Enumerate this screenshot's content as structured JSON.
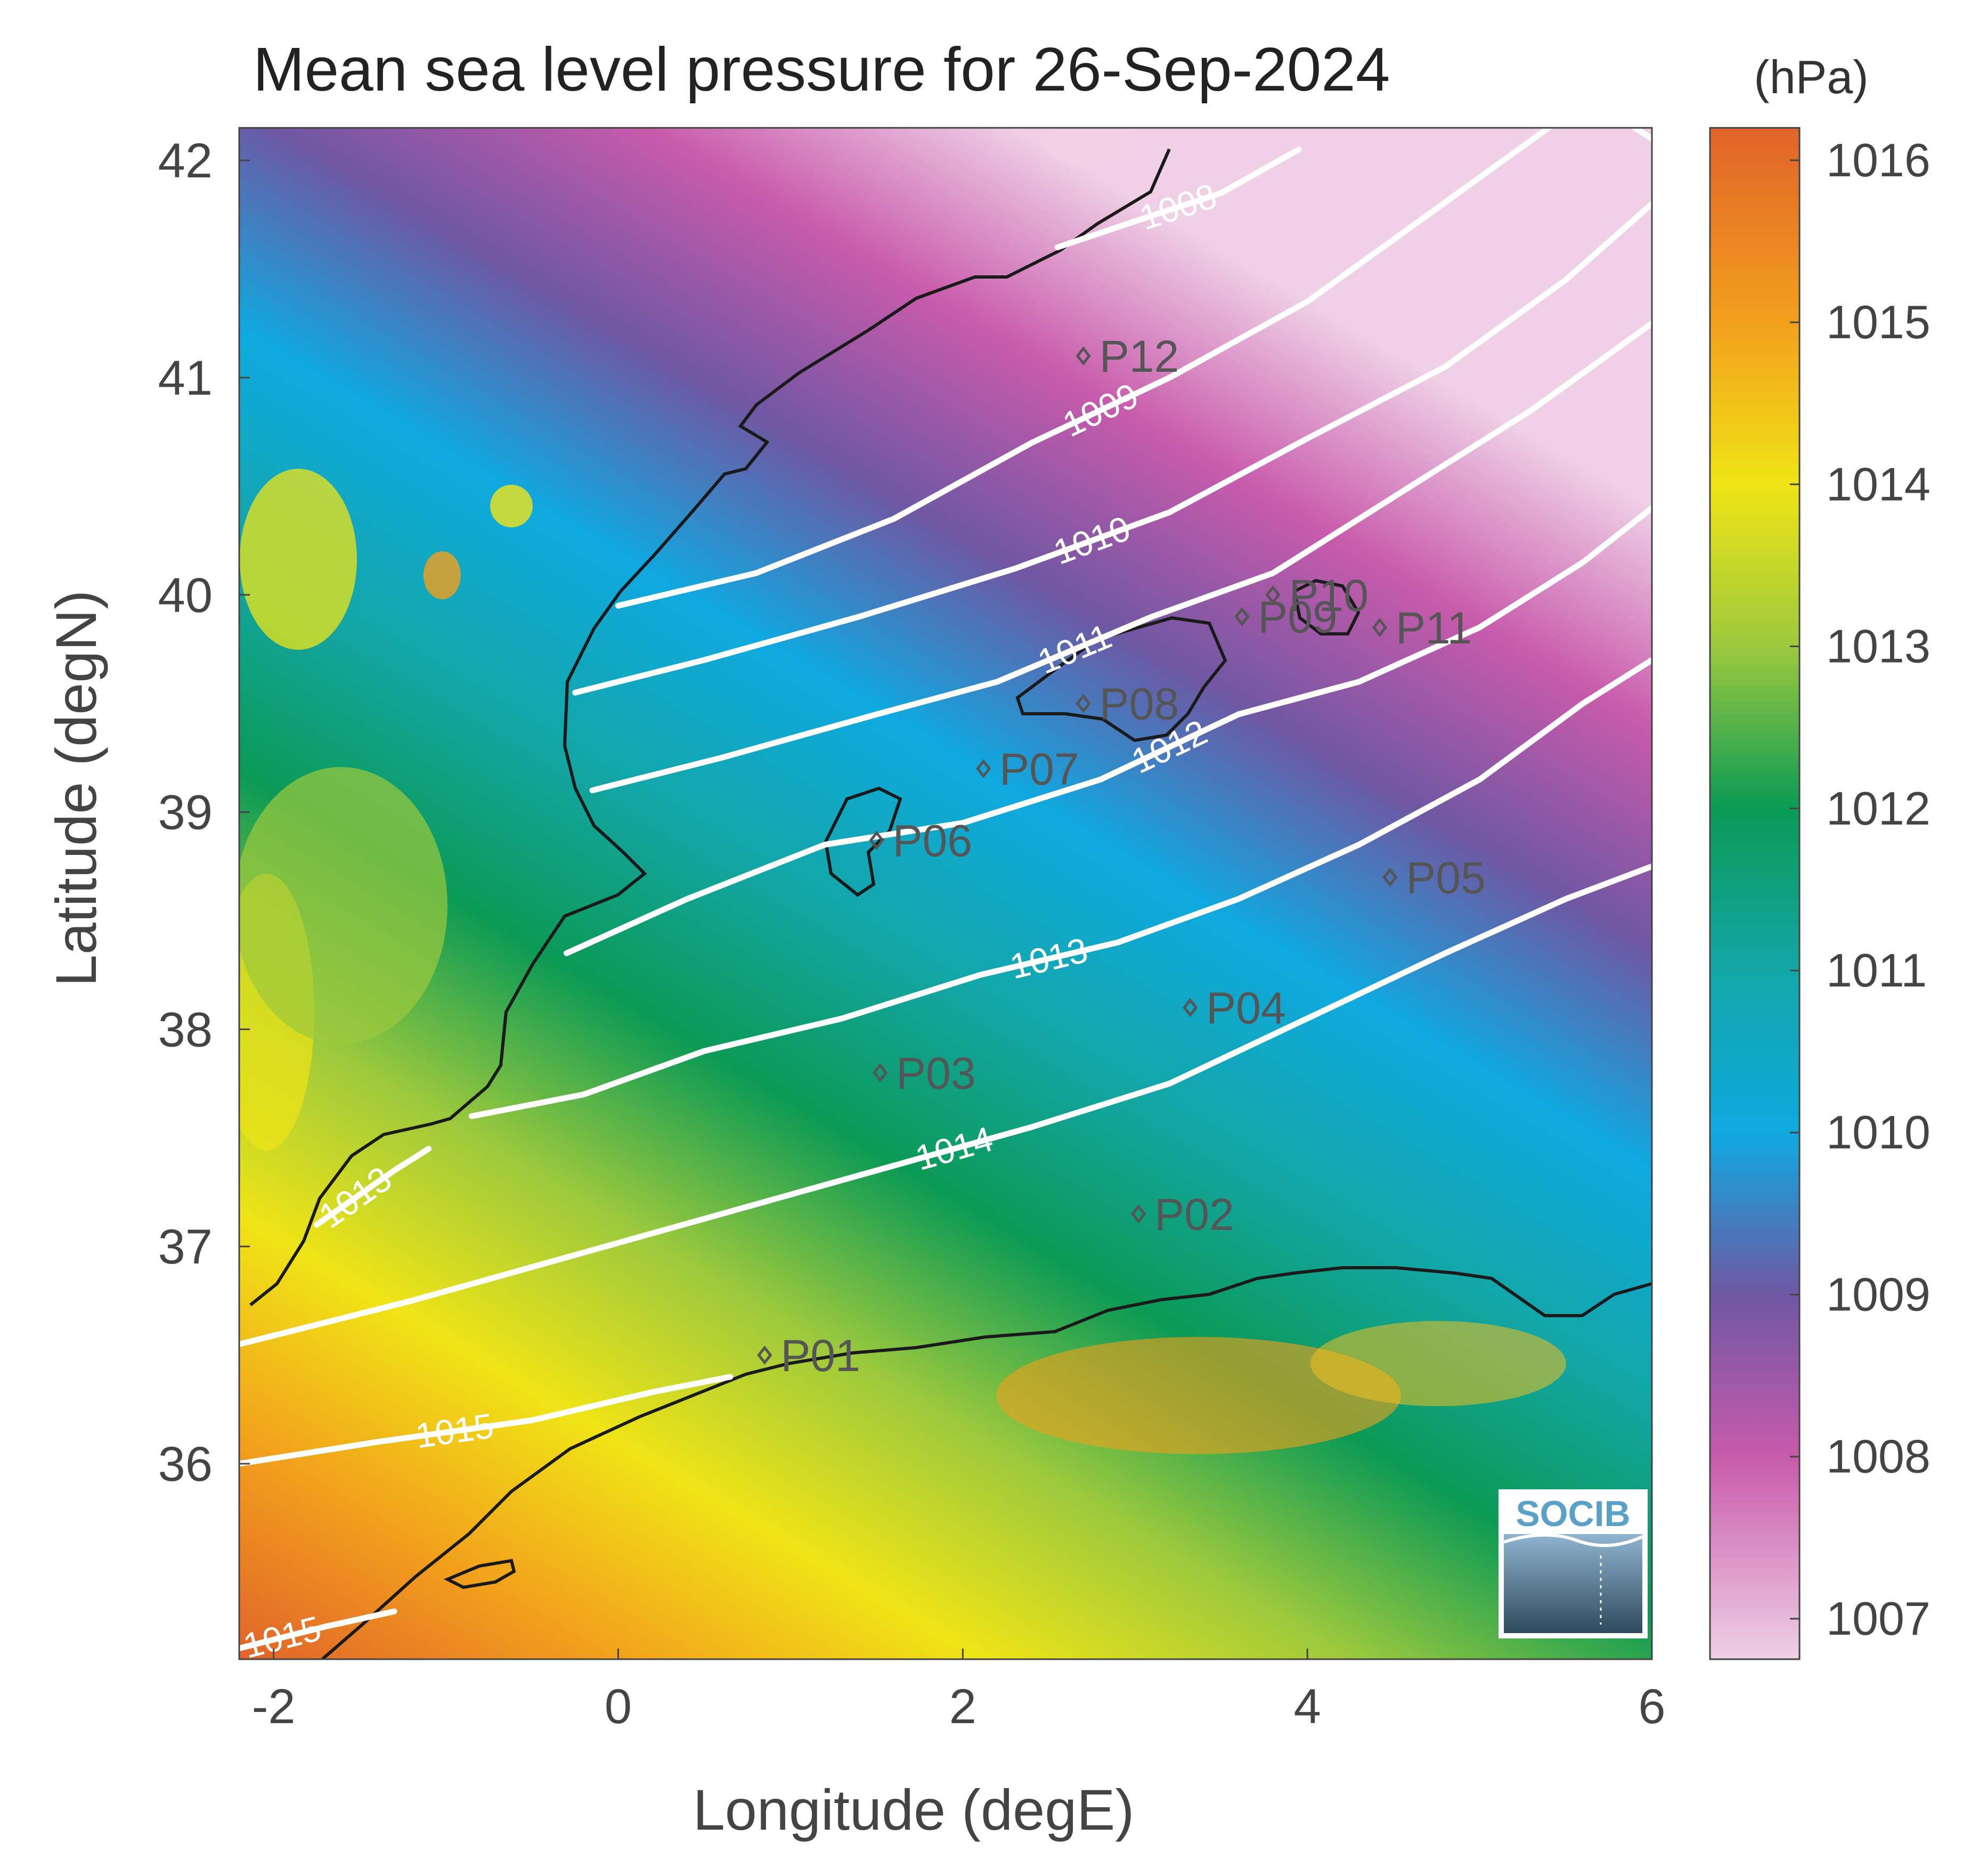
{
  "figure": {
    "title": "Mean sea level pressure for 26-Sep-2024",
    "xlabel": "Longitude (degE)",
    "ylabel": "Latitude (degN)",
    "colorbar_unit": "(hPa)",
    "logo_text": "SOCIB"
  },
  "chart_data": {
    "type": "heatmap",
    "title": "Mean sea level pressure for 26-Sep-2024",
    "xlabel": "Longitude (degE)",
    "ylabel": "Latitude (degN)",
    "xlim": [
      -2.2,
      6
    ],
    "ylim": [
      35.1,
      42.15
    ],
    "xticks": [
      -2,
      0,
      2,
      4,
      6
    ],
    "xtick_labels": [
      "-2",
      "0",
      "2",
      "4",
      "6"
    ],
    "yticks": [
      36,
      37,
      38,
      39,
      40,
      41,
      42
    ],
    "ytick_labels": [
      "36",
      "37",
      "38",
      "39",
      "40",
      "41",
      "42"
    ],
    "colorbar": {
      "label": "(hPa)",
      "range": [
        1006.75,
        1016.2
      ],
      "ticks": [
        1007,
        1008,
        1009,
        1010,
        1011,
        1012,
        1013,
        1014,
        1015,
        1016
      ],
      "tick_labels": [
        "1007",
        "1008",
        "1009",
        "1010",
        "1011",
        "1012",
        "1013",
        "1014",
        "1015",
        "1016"
      ],
      "stops": [
        {
          "value": 1006.75,
          "color": "#efd0e6"
        },
        {
          "value": 1008,
          "color": "#c85aab"
        },
        {
          "value": 1009,
          "color": "#6f57a3"
        },
        {
          "value": 1010,
          "color": "#0fa9e0"
        },
        {
          "value": 1011,
          "color": "#13a6a8"
        },
        {
          "value": 1012,
          "color": "#0b9a55"
        },
        {
          "value": 1013,
          "color": "#9cc93d"
        },
        {
          "value": 1014,
          "color": "#f0e416"
        },
        {
          "value": 1015,
          "color": "#f2a01c"
        },
        {
          "value": 1016.2,
          "color": "#e1632a"
        }
      ]
    },
    "contours": [
      {
        "level": 1008,
        "label": "1008",
        "points": [
          [
            2.55,
            41.6
          ],
          [
            3.0,
            41.72
          ],
          [
            3.5,
            41.85
          ],
          [
            3.95,
            42.05
          ]
        ]
      },
      {
        "level": 1009,
        "label": "1009",
        "points": [
          [
            0.0,
            39.95
          ],
          [
            0.8,
            40.1
          ],
          [
            1.6,
            40.35
          ],
          [
            2.4,
            40.7
          ],
          [
            3.2,
            41.0
          ],
          [
            4.0,
            41.35
          ],
          [
            4.7,
            41.75
          ],
          [
            5.4,
            42.15
          ]
        ]
      },
      {
        "level": 1009,
        "label": "1009",
        "points": [
          [
            5.9,
            42.15
          ],
          [
            6.0,
            42.1
          ]
        ]
      },
      {
        "level": 1010,
        "label": "1010",
        "points": [
          [
            -0.25,
            39.55
          ],
          [
            0.5,
            39.7
          ],
          [
            1.4,
            39.9
          ],
          [
            2.3,
            40.12
          ],
          [
            3.2,
            40.38
          ],
          [
            4.0,
            40.72
          ],
          [
            4.8,
            41.05
          ],
          [
            5.5,
            41.45
          ],
          [
            6.0,
            41.8
          ]
        ]
      },
      {
        "level": 1011,
        "label": "1011",
        "points": [
          [
            -0.15,
            39.1
          ],
          [
            0.6,
            39.25
          ],
          [
            1.5,
            39.45
          ],
          [
            2.2,
            39.6
          ],
          [
            3.1,
            39.9
          ],
          [
            3.8,
            40.1
          ],
          [
            4.5,
            40.45
          ],
          [
            5.3,
            40.85
          ],
          [
            6.0,
            41.25
          ]
        ]
      },
      {
        "level": 1012,
        "label": "1012",
        "points": [
          [
            -0.3,
            38.35
          ],
          [
            0.4,
            38.6
          ],
          [
            1.2,
            38.85
          ],
          [
            2.0,
            38.95
          ],
          [
            2.8,
            39.15
          ],
          [
            3.6,
            39.45
          ],
          [
            4.3,
            39.6
          ],
          [
            5.0,
            39.85
          ],
          [
            5.6,
            40.15
          ],
          [
            6.0,
            40.4
          ]
        ]
      },
      {
        "level": 1013,
        "label": "1013",
        "points": [
          [
            -0.85,
            37.6
          ],
          [
            -0.2,
            37.7
          ],
          [
            0.5,
            37.9
          ],
          [
            1.3,
            38.05
          ],
          [
            2.1,
            38.25
          ],
          [
            2.9,
            38.4
          ],
          [
            3.6,
            38.6
          ],
          [
            4.3,
            38.85
          ],
          [
            5.0,
            39.15
          ],
          [
            5.6,
            39.5
          ],
          [
            6.0,
            39.7
          ]
        ]
      },
      {
        "level": 1013,
        "label": "1013",
        "points": [
          [
            -1.75,
            37.1
          ],
          [
            -1.3,
            37.35
          ],
          [
            -1.1,
            37.45
          ]
        ]
      },
      {
        "level": 1014,
        "label": "1014",
        "points": [
          [
            -2.2,
            36.55
          ],
          [
            -1.2,
            36.75
          ],
          [
            -0.3,
            36.95
          ],
          [
            0.6,
            37.15
          ],
          [
            1.5,
            37.35
          ],
          [
            2.4,
            37.55
          ],
          [
            3.2,
            37.75
          ],
          [
            4.0,
            38.05
          ],
          [
            4.8,
            38.35
          ],
          [
            5.5,
            38.6
          ],
          [
            6.0,
            38.75
          ]
        ]
      },
      {
        "level": 1015,
        "label": "1015",
        "points": [
          [
            -2.2,
            36.0
          ],
          [
            -1.4,
            36.1
          ],
          [
            -0.5,
            36.2
          ],
          [
            0.2,
            36.33
          ],
          [
            0.65,
            36.4
          ]
        ]
      },
      {
        "level": 1015,
        "label": "1015",
        "points": [
          [
            -2.2,
            35.15
          ],
          [
            -1.7,
            35.25
          ],
          [
            -1.3,
            35.32
          ]
        ]
      }
    ],
    "stations": [
      {
        "name": "P01",
        "lon": 0.85,
        "lat": 36.5
      },
      {
        "name": "P02",
        "lon": 3.02,
        "lat": 37.15
      },
      {
        "name": "P03",
        "lon": 1.52,
        "lat": 37.8
      },
      {
        "name": "P04",
        "lon": 3.32,
        "lat": 38.1
      },
      {
        "name": "P05",
        "lon": 4.48,
        "lat": 38.7
      },
      {
        "name": "P06",
        "lon": 1.5,
        "lat": 38.87
      },
      {
        "name": "P07",
        "lon": 2.12,
        "lat": 39.2
      },
      {
        "name": "P08",
        "lon": 2.7,
        "lat": 39.5
      },
      {
        "name": "P09",
        "lon": 3.62,
        "lat": 39.9
      },
      {
        "name": "P10",
        "lon": 3.8,
        "lat": 40.0
      },
      {
        "name": "P11",
        "lon": 4.42,
        "lat": 39.85
      },
      {
        "name": "P12",
        "lon": 2.7,
        "lat": 41.1
      }
    ]
  }
}
